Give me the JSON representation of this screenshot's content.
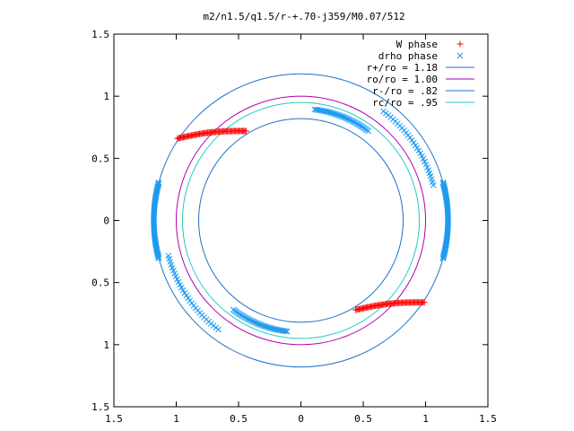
{
  "chart_data": {
    "type": "scatter",
    "title": "m2/n1.5/q1.5/r-+.70-j359/M0.07/512",
    "xlabel": "",
    "ylabel": "",
    "xlim": [
      -1.5,
      1.5
    ],
    "ylim": [
      -1.5,
      1.5
    ],
    "grid": false,
    "legend_position": "top-right",
    "x_ticks": [
      {
        "value": -1.5,
        "label": "1.5"
      },
      {
        "value": -1.0,
        "label": "1"
      },
      {
        "value": -0.5,
        "label": "0.5"
      },
      {
        "value": 0.0,
        "label": "0"
      },
      {
        "value": 0.5,
        "label": "0.5"
      },
      {
        "value": 1.0,
        "label": "1"
      },
      {
        "value": 1.5,
        "label": "1.5"
      }
    ],
    "y_ticks": [
      {
        "value": 1.5,
        "label": "1.5"
      },
      {
        "value": 1.0,
        "label": "1"
      },
      {
        "value": 0.5,
        "label": "0.5"
      },
      {
        "value": 0.0,
        "label": "0"
      },
      {
        "value": -0.5,
        "label": "0.5"
      },
      {
        "value": -1.0,
        "label": "1"
      },
      {
        "value": -1.5,
        "label": "1.5"
      }
    ],
    "circles": [
      {
        "name": "r+/ro = 1.18",
        "radius": 1.18,
        "color": "#1e72c8"
      },
      {
        "name": "ro/ro = 1.00",
        "radius": 1.0,
        "color": "#b000b0"
      },
      {
        "name": "r-/ro = .82",
        "radius": 0.82,
        "color": "#1e72c8"
      },
      {
        "name": "rc/ro = .95",
        "radius": 0.95,
        "color": "#20c8c8"
      }
    ],
    "series": [
      {
        "name": "W phase",
        "marker": "plus",
        "color": "#ff0000",
        "arcs": [
          {
            "x_from": -0.99,
            "y_from": 0.66,
            "x_to": -0.44,
            "y_to": 0.72,
            "sag": 0.02,
            "n": 60
          },
          {
            "x_from": 0.44,
            "y_from": -0.72,
            "x_to": 0.99,
            "y_to": -0.66,
            "sag": 0.02,
            "n": 60
          }
        ]
      },
      {
        "name": "drho phase",
        "marker": "cross",
        "color": "#1e9bf0",
        "arcs": [
          {
            "angle_from": 165,
            "angle_to": 195,
            "radius": 1.18,
            "n": 70
          },
          {
            "angle_from": 195,
            "angle_to": 233,
            "radius": 1.1,
            "n": 30
          },
          {
            "angle_from": 233,
            "angle_to": 263,
            "radius": 0.9,
            "n": 40
          },
          {
            "angle_from": -15,
            "angle_to": 15,
            "radius": 1.18,
            "n": 70
          },
          {
            "angle_from": 15,
            "angle_to": 53,
            "radius": 1.1,
            "n": 30
          },
          {
            "angle_from": 53,
            "angle_to": 83,
            "radius": 0.9,
            "n": 40
          }
        ]
      }
    ]
  }
}
